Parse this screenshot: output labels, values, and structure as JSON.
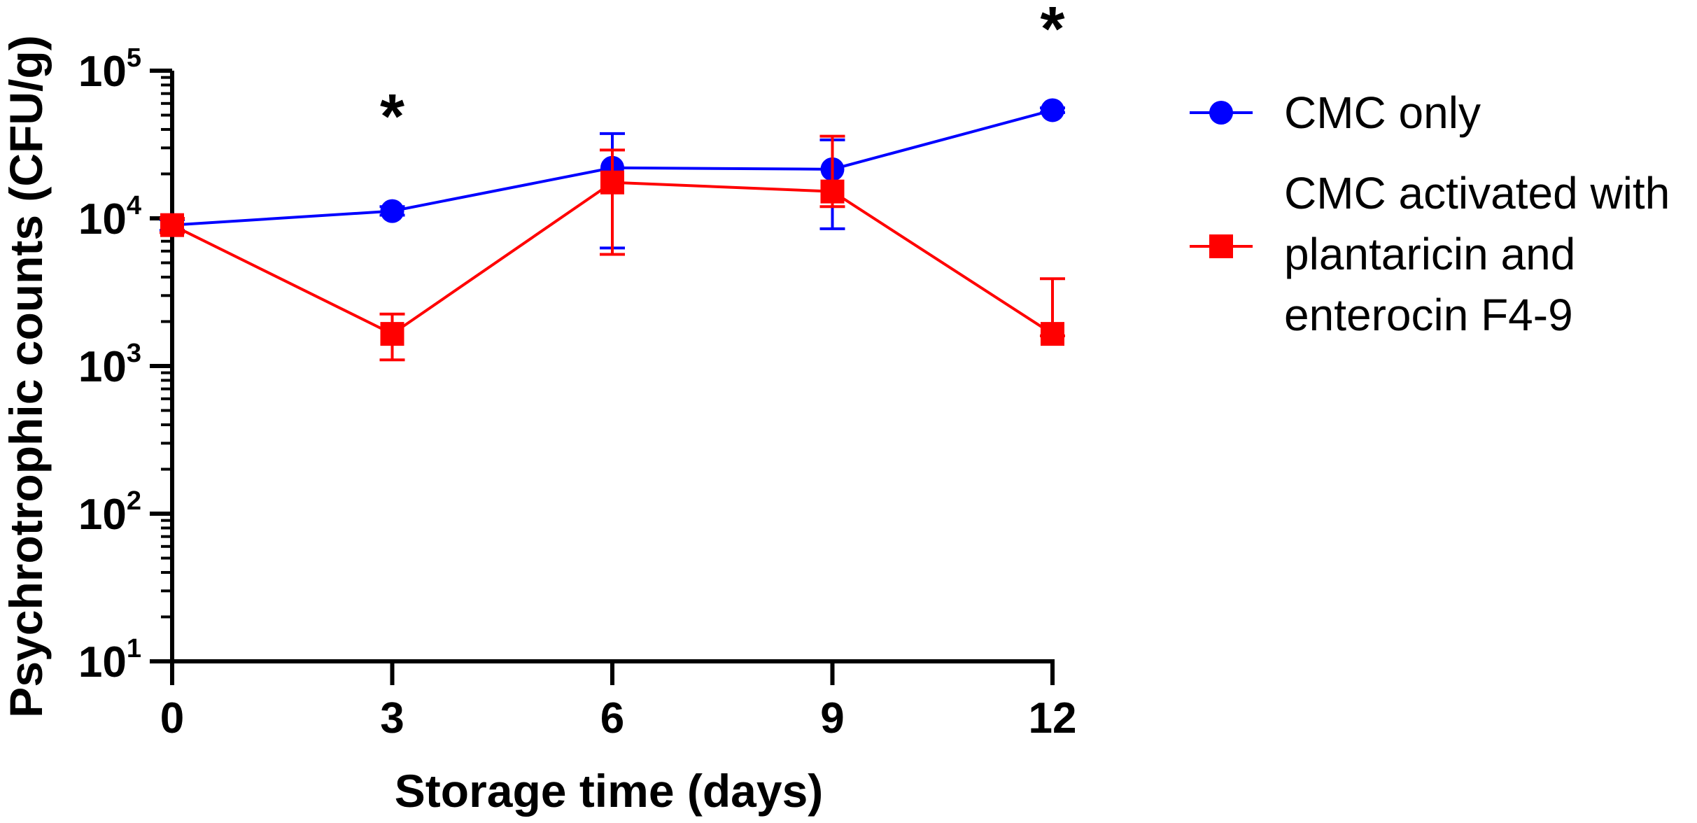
{
  "chart_data": {
    "type": "line",
    "title": "",
    "xlabel": "Storage time (days)",
    "ylabel": "Psychrotrophic counts (CFU/g)",
    "yscale": "log",
    "x": [
      0,
      3,
      6,
      9,
      12
    ],
    "xlim": [
      0,
      12
    ],
    "ylim": [
      10,
      100000
    ],
    "xticks": [
      "0",
      "3",
      "6",
      "9",
      "12"
    ],
    "yticks": [
      {
        "value": 10,
        "base": "10",
        "exp": "1"
      },
      {
        "value": 100,
        "base": "10",
        "exp": "2"
      },
      {
        "value": 1000,
        "base": "10",
        "exp": "3"
      },
      {
        "value": 10000,
        "base": "10",
        "exp": "4"
      },
      {
        "value": 100000,
        "base": "10",
        "exp": "5"
      }
    ],
    "series": [
      {
        "name": "CMC only",
        "color": "#0000ff",
        "marker": "circle",
        "values": [
          9000,
          11200,
          22000,
          21500,
          54000
        ],
        "error_low": [
          8300,
          10500,
          6300,
          8500,
          52000
        ],
        "error_high": [
          9800,
          12000,
          37500,
          34000,
          56000
        ]
      },
      {
        "name": "CMC activated with plantaricin and enterocin F4-9",
        "legend_lines": [
          "CMC activated with",
          "plantaricin and",
          "enterocin F4-9"
        ],
        "color": "#ff0000",
        "marker": "square",
        "values": [
          9000,
          1650,
          17500,
          15200,
          1650
        ],
        "error_low": [
          8000,
          1100,
          5700,
          12000,
          1600
        ],
        "error_high": [
          10000,
          2250,
          29000,
          36000,
          3900
        ]
      }
    ],
    "annotations": [
      {
        "x": 3,
        "text": "*"
      },
      {
        "x": 12,
        "text": "*"
      }
    ],
    "legend_position": "right"
  }
}
